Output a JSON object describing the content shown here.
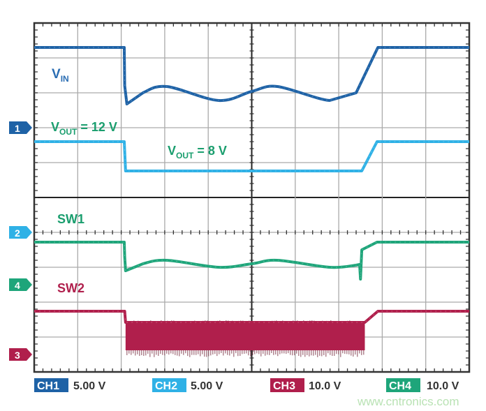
{
  "chart_data": {
    "type": "line",
    "title": "",
    "xlabel": "",
    "ylabel": "",
    "x_unit": "div",
    "xlim": [
      0,
      10
    ],
    "ylim_div": [
      -4,
      6
    ],
    "grid": true,
    "series": [
      {
        "channel": "CH1",
        "name_main": "V",
        "name_sub": "IN",
        "color": "#1e62a6",
        "scale_label": "5.00 V",
        "volts_per_div": 5,
        "marker": "1",
        "points": [
          [
            0,
            11.5
          ],
          [
            2.07,
            11.5
          ],
          [
            2.08,
            6.0
          ],
          [
            2.13,
            3.4
          ],
          [
            2.5,
            5.0
          ],
          [
            3.05,
            5.9
          ],
          [
            4.24,
            3.9
          ],
          [
            5.0,
            5.2
          ],
          [
            5.59,
            5.9
          ],
          [
            6.79,
            3.9
          ],
          [
            7.4,
            5.0
          ],
          [
            7.9,
            11.5
          ],
          [
            10,
            11.5
          ]
        ]
      },
      {
        "channel": "CH2",
        "color": "#2fb1e6",
        "scale_label": "5.00 V",
        "volts_per_div": 5,
        "marker": "2",
        "points": [
          [
            0,
            13.0
          ],
          [
            2.07,
            13.0
          ],
          [
            2.1,
            8.8
          ],
          [
            7.53,
            8.8
          ],
          [
            7.88,
            13.0
          ],
          [
            10,
            13.0
          ]
        ]
      },
      {
        "channel": "CH3",
        "name": "SW2",
        "color": "#b01f4c",
        "scale_label": "10.0 V",
        "volts_per_div": 10,
        "marker": "3",
        "points": [
          [
            0,
            12.4
          ],
          [
            2.08,
            12.4
          ],
          [
            2.1,
            9.2
          ],
          [
            7.6,
            9.2
          ],
          [
            7.9,
            12.4
          ],
          [
            10,
            12.4
          ]
        ],
        "switching_band": {
          "t_start": 2.1,
          "t_end": 7.6,
          "high": 9.2,
          "low": 1.2,
          "spike_low": -0.8
        }
      },
      {
        "channel": "CH4",
        "name": "SW1",
        "color": "#1ea57a",
        "scale_label": "10.0 V",
        "volts_per_div": 10,
        "marker": "4",
        "points": [
          [
            0,
            12.2
          ],
          [
            2.07,
            12.2
          ],
          [
            2.08,
            8.0
          ],
          [
            2.1,
            4.0
          ],
          [
            2.5,
            6.0
          ],
          [
            3.05,
            7.0
          ],
          [
            4.24,
            5.0
          ],
          [
            5.0,
            6.0
          ],
          [
            5.59,
            7.0
          ],
          [
            6.79,
            5.0
          ],
          [
            7.4,
            5.6
          ],
          [
            7.48,
            5.8
          ],
          [
            7.5,
            1.6
          ],
          [
            7.53,
            10.0
          ],
          [
            7.88,
            12.2
          ],
          [
            10,
            12.2
          ]
        ]
      }
    ],
    "annotations": {
      "vout_high": {
        "main": "V",
        "sub": "OUT",
        "rest": " = 12 V"
      },
      "vout_low": {
        "main": "V",
        "sub": "OUT",
        "rest": " = 8 V"
      }
    }
  },
  "legend": [
    {
      "channel": "CH1",
      "scale": "5.00 V"
    },
    {
      "channel": "CH2",
      "scale": "5.00 V"
    },
    {
      "channel": "CH3",
      "scale": "10.0 V"
    },
    {
      "channel": "CH4",
      "scale": "10.0 V"
    }
  ],
  "watermark": "www.cntronics.com"
}
